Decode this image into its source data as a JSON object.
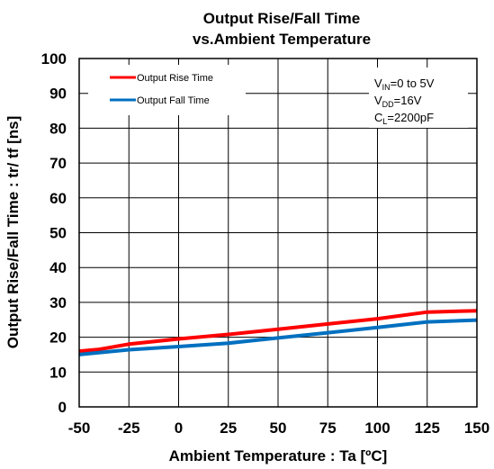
{
  "chart_data": {
    "type": "line",
    "title_line1": "Output Rise/Fall Time",
    "title_line2": "vs.Ambient Temperature",
    "xlabel": "Ambient Temperature : Ta [ºC]",
    "ylabel": "Output Rise/Fall Time : tr/ tf [ns]",
    "xlim": [
      -50,
      150
    ],
    "ylim": [
      0,
      100
    ],
    "x_ticks": [
      -50,
      -25,
      0,
      25,
      50,
      75,
      100,
      125,
      150
    ],
    "y_ticks": [
      0,
      10,
      20,
      30,
      40,
      50,
      60,
      70,
      80,
      90,
      100
    ],
    "x_tick_labels": [
      "-50",
      "-25",
      "0",
      "25",
      "50",
      "75",
      "100",
      "125",
      "150"
    ],
    "y_tick_labels": [
      "0",
      "10",
      "20",
      "30",
      "40",
      "50",
      "60",
      "70",
      "80",
      "90",
      "100"
    ],
    "grid": true,
    "legend_position": "top-left",
    "series": [
      {
        "name": "Output Rise Time",
        "color": "#ff0000",
        "x": [
          -50,
          -40,
          -25,
          0,
          25,
          50,
          75,
          100,
          125,
          150
        ],
        "y": [
          16,
          16.5,
          18,
          19.5,
          20.8,
          22.3,
          23.8,
          25.3,
          27.2,
          27.6
        ]
      },
      {
        "name": "Output Fall Time",
        "color": "#0070c0",
        "x": [
          -50,
          -25,
          0,
          25,
          50,
          75,
          100,
          125,
          150
        ],
        "y": [
          15,
          16.4,
          17.3,
          18.3,
          19.8,
          21.3,
          22.8,
          24.4,
          24.9
        ]
      }
    ],
    "conditions": {
      "vin_main": "V",
      "vin_sub": "IN",
      "vin_value": "=0 to 5V",
      "vdd_main": "V",
      "vdd_sub": "DD",
      "vdd_value": "=16V",
      "cl_main": "C",
      "cl_sub": "L",
      "cl_value": "=2200pF"
    }
  }
}
